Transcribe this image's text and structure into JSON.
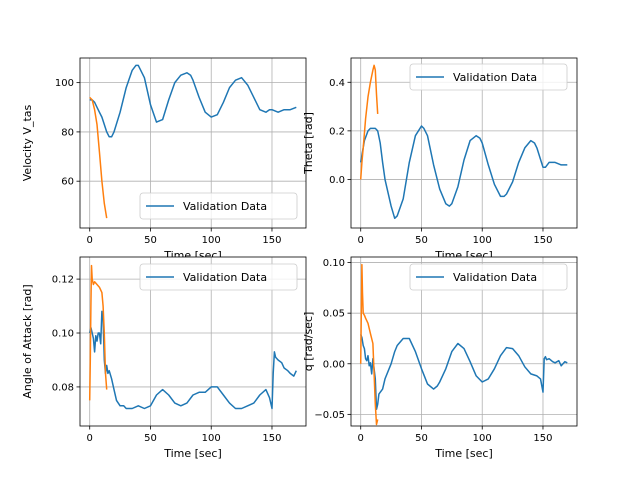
{
  "figure": {
    "background": "#ffffff"
  },
  "colors": {
    "series0": "#1f77b4",
    "series1": "#ff7f0e",
    "grid": "#b0b0b0",
    "axes": "#000000"
  },
  "chart_data": [
    {
      "type": "line",
      "xlabel": "Time [sec]",
      "ylabel": "Velocity V_tas",
      "xlim": [
        -8,
        178
      ],
      "ylim": [
        41,
        110
      ],
      "xticks": [
        0,
        50,
        100,
        150
      ],
      "yticks": [
        60,
        80,
        100
      ],
      "grid": true,
      "legend": "lower right",
      "series": [
        {
          "name": "Validation Data",
          "x": [
            0,
            2,
            4,
            6,
            8,
            10,
            12,
            14,
            16,
            18,
            20,
            25,
            30,
            35,
            38,
            40,
            45,
            50,
            55,
            60,
            65,
            70,
            75,
            80,
            83,
            85,
            90,
            95,
            100,
            105,
            110,
            115,
            120,
            125,
            130,
            135,
            140,
            145,
            148,
            150,
            155,
            160,
            165,
            170
          ],
          "y": [
            93,
            93,
            92,
            90,
            88,
            86,
            83,
            80,
            78,
            78,
            80,
            88,
            98,
            105,
            107,
            107,
            102,
            91,
            84,
            85,
            93,
            100,
            103,
            104,
            103,
            101,
            94,
            88,
            86,
            87,
            92,
            98,
            101,
            102,
            99,
            94,
            89,
            88,
            89,
            89,
            88,
            89,
            89,
            90
          ]
        },
        {
          "name": "",
          "x": [
            0,
            2,
            4,
            6,
            8,
            10,
            12,
            14
          ],
          "y": [
            94,
            93,
            89,
            83,
            72,
            60,
            51,
            45
          ]
        }
      ]
    },
    {
      "type": "line",
      "xlabel": "Time [sec]",
      "ylabel": "Theta [rad]",
      "xlim": [
        -8,
        178
      ],
      "ylim": [
        -0.2,
        0.5
      ],
      "xticks": [
        0,
        50,
        100,
        150
      ],
      "yticks": [
        0.0,
        0.2,
        0.4
      ],
      "yticklabels": [
        "0.0",
        "0.2",
        "0.4"
      ],
      "grid": true,
      "legend": "upper right",
      "series": [
        {
          "name": "Validation Data",
          "x": [
            0,
            3,
            6,
            8,
            10,
            12,
            14,
            16,
            18,
            20,
            25,
            28,
            30,
            35,
            40,
            45,
            50,
            52,
            55,
            60,
            65,
            70,
            73,
            75,
            80,
            85,
            90,
            95,
            98,
            100,
            105,
            110,
            115,
            118,
            120,
            125,
            130,
            135,
            140,
            143,
            145,
            150,
            152,
            155,
            160,
            165,
            170
          ],
          "y": [
            0.07,
            0.16,
            0.2,
            0.21,
            0.21,
            0.21,
            0.2,
            0.15,
            0.07,
            0.0,
            -0.11,
            -0.16,
            -0.15,
            -0.08,
            0.07,
            0.18,
            0.22,
            0.21,
            0.18,
            0.06,
            -0.04,
            -0.1,
            -0.11,
            -0.1,
            -0.03,
            0.08,
            0.16,
            0.18,
            0.17,
            0.15,
            0.06,
            -0.02,
            -0.07,
            -0.07,
            -0.06,
            -0.01,
            0.07,
            0.13,
            0.16,
            0.15,
            0.13,
            0.05,
            0.05,
            0.07,
            0.07,
            0.06,
            0.06
          ]
        },
        {
          "name": "",
          "x": [
            0,
            1,
            2,
            4,
            6,
            8,
            10,
            11,
            12,
            13,
            14
          ],
          "y": [
            0.0,
            0.07,
            0.13,
            0.25,
            0.34,
            0.4,
            0.45,
            0.47,
            0.45,
            0.35,
            0.27
          ]
        }
      ]
    },
    {
      "type": "line",
      "xlabel": "Time [sec]",
      "ylabel": "Angle of Attack [rad]",
      "xlim": [
        -8,
        178
      ],
      "ylim": [
        0.0655,
        0.1282
      ],
      "xticks": [
        0,
        50,
        100,
        150
      ],
      "yticks": [
        0.08,
        0.1,
        0.12
      ],
      "yticklabels": [
        "0.08",
        "0.10",
        "0.12"
      ],
      "grid": true,
      "legend": "upper right",
      "series": [
        {
          "name": "Validation Data",
          "x": [
            0,
            1,
            2,
            3,
            4,
            5,
            6,
            7,
            8,
            9,
            10,
            11,
            12,
            13,
            14,
            15,
            16,
            18,
            20,
            22,
            25,
            28,
            30,
            35,
            40,
            45,
            50,
            55,
            60,
            65,
            70,
            75,
            80,
            85,
            90,
            95,
            100,
            105,
            110,
            115,
            120,
            125,
            130,
            135,
            140,
            145,
            148,
            150,
            151,
            152,
            153,
            155,
            158,
            160,
            163,
            165,
            168,
            170
          ],
          "y": [
            0.1,
            0.102,
            0.1,
            0.098,
            0.093,
            0.099,
            0.097,
            0.1,
            0.1,
            0.096,
            0.108,
            0.105,
            0.09,
            0.085,
            0.088,
            0.085,
            0.086,
            0.083,
            0.079,
            0.075,
            0.073,
            0.073,
            0.072,
            0.072,
            0.073,
            0.072,
            0.073,
            0.077,
            0.079,
            0.077,
            0.074,
            0.073,
            0.074,
            0.077,
            0.078,
            0.078,
            0.08,
            0.08,
            0.077,
            0.074,
            0.072,
            0.072,
            0.073,
            0.074,
            0.077,
            0.079,
            0.076,
            0.072,
            0.085,
            0.093,
            0.091,
            0.09,
            0.089,
            0.087,
            0.086,
            0.085,
            0.084,
            0.086
          ]
        },
        {
          "name": "",
          "x": [
            0,
            0.5,
            1,
            1.5,
            2,
            3,
            4,
            6,
            8,
            10,
            11,
            12,
            13,
            14
          ],
          "y": [
            0.075,
            0.09,
            0.11,
            0.125,
            0.12,
            0.118,
            0.119,
            0.118,
            0.117,
            0.115,
            0.11,
            0.1,
            0.085,
            0.079
          ]
        }
      ]
    },
    {
      "type": "line",
      "xlabel": "Time [sec]",
      "ylabel": "q [rad/sec]",
      "xlim": [
        -8,
        178
      ],
      "ylim": [
        -0.0615,
        0.1055
      ],
      "xticks": [
        0,
        50,
        100,
        150
      ],
      "yticks": [
        -0.05,
        0.0,
        0.05,
        0.1
      ],
      "yticklabels": [
        "−0.05",
        "0.00",
        "0.05",
        "0.10"
      ],
      "grid": true,
      "legend": "upper right",
      "series": [
        {
          "name": "Validation Data",
          "x": [
            0,
            1,
            2,
            3,
            4,
            5,
            6,
            7,
            8,
            9,
            10,
            11,
            12,
            13,
            14,
            15,
            18,
            20,
            25,
            28,
            30,
            35,
            40,
            45,
            50,
            55,
            60,
            63,
            65,
            70,
            75,
            80,
            85,
            90,
            95,
            100,
            105,
            110,
            115,
            120,
            125,
            130,
            135,
            140,
            145,
            148,
            150,
            151,
            152,
            153,
            155,
            158,
            160,
            163,
            165,
            168,
            170
          ],
          "y": [
            0.029,
            0.026,
            0.018,
            0.015,
            0.005,
            0.003,
            0.008,
            -0.002,
            0.001,
            -0.01,
            0.005,
            -0.005,
            -0.015,
            -0.045,
            -0.04,
            -0.03,
            -0.025,
            -0.015,
            0.0,
            0.012,
            0.018,
            0.025,
            0.025,
            0.012,
            -0.005,
            -0.02,
            -0.025,
            -0.022,
            -0.018,
            -0.005,
            0.012,
            0.02,
            0.015,
            0.002,
            -0.012,
            -0.018,
            -0.015,
            -0.005,
            0.008,
            0.016,
            0.015,
            0.008,
            -0.003,
            -0.01,
            -0.012,
            -0.015,
            -0.028,
            0.005,
            0.007,
            0.004,
            0.005,
            0.002,
            0.001,
            0.003,
            -0.002,
            0.002,
            0.001
          ]
        },
        {
          "name": "",
          "x": [
            0,
            0.5,
            1,
            1.5,
            2,
            3,
            4,
            6,
            8,
            10,
            11,
            12,
            13,
            14
          ],
          "y": [
            0.0,
            0.05,
            0.098,
            0.07,
            0.05,
            0.048,
            0.045,
            0.04,
            0.03,
            0.02,
            -0.01,
            -0.04,
            -0.06,
            -0.055
          ]
        }
      ]
    }
  ]
}
